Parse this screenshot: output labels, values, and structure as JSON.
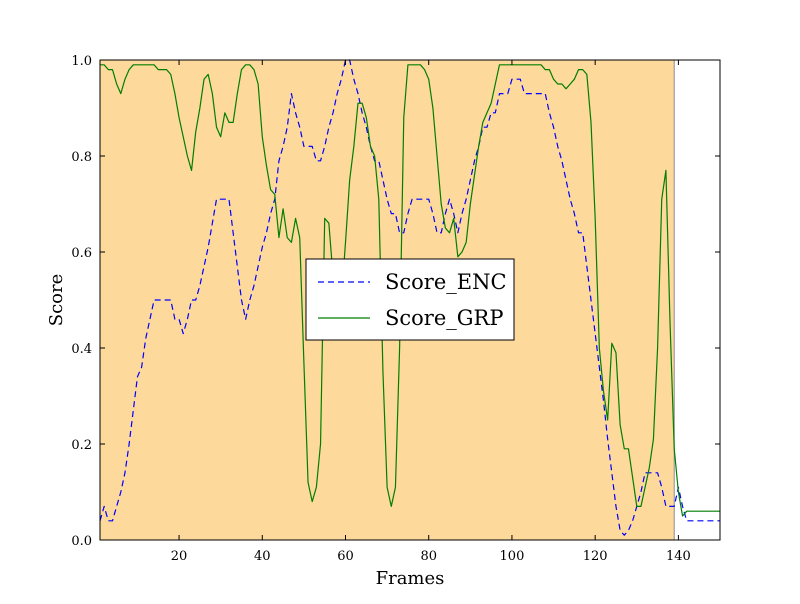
{
  "chart_data": {
    "type": "line",
    "xlabel": "Frames",
    "ylabel": "Score",
    "xlim": [
      1,
      150
    ],
    "ylim": [
      0.0,
      1.0
    ],
    "x_ticks": [
      20,
      40,
      60,
      80,
      100,
      120,
      140
    ],
    "x_tick_labels": [
      "20",
      "40",
      "60",
      "80",
      "100",
      "120",
      "140"
    ],
    "y_ticks": [
      0.0,
      0.2,
      0.4,
      0.6,
      0.8,
      1.0
    ],
    "y_tick_labels": [
      "0.0",
      "0.2",
      "0.4",
      "0.6",
      "0.8",
      "1.0"
    ],
    "grid": false,
    "legend_position": "center",
    "highlight_span": {
      "x_start": 1,
      "x_end": 139,
      "color": "#fdd99b"
    },
    "series": [
      {
        "name": "Score_ENC",
        "color": "#0000ff",
        "style": "dashed",
        "x": [
          1,
          2,
          3,
          4,
          5,
          6,
          7,
          8,
          9,
          10,
          11,
          12,
          13,
          14,
          15,
          16,
          17,
          18,
          19,
          20,
          21,
          22,
          23,
          24,
          25,
          26,
          27,
          28,
          29,
          30,
          31,
          32,
          33,
          34,
          35,
          36,
          37,
          38,
          39,
          40,
          41,
          42,
          43,
          44,
          45,
          46,
          47,
          48,
          49,
          50,
          51,
          52,
          53,
          54,
          55,
          56,
          57,
          58,
          59,
          60,
          61,
          62,
          63,
          64,
          65,
          66,
          67,
          68,
          69,
          70,
          71,
          72,
          73,
          74,
          75,
          76,
          77,
          78,
          79,
          80,
          81,
          82,
          83,
          84,
          85,
          86,
          87,
          88,
          89,
          90,
          91,
          92,
          93,
          94,
          95,
          96,
          97,
          98,
          99,
          100,
          101,
          102,
          103,
          104,
          105,
          106,
          107,
          108,
          109,
          110,
          111,
          112,
          113,
          114,
          115,
          116,
          117,
          118,
          119,
          120,
          121,
          122,
          123,
          124,
          125,
          126,
          127,
          128,
          129,
          130,
          131,
          132,
          133,
          134,
          135,
          136,
          137,
          138,
          139,
          140,
          141,
          142,
          143,
          144,
          145,
          146,
          147,
          148,
          149,
          150
        ],
        "y": [
          0.04,
          0.07,
          0.04,
          0.04,
          0.07,
          0.1,
          0.14,
          0.2,
          0.27,
          0.34,
          0.36,
          0.42,
          0.46,
          0.5,
          0.5,
          0.5,
          0.5,
          0.5,
          0.46,
          0.46,
          0.43,
          0.46,
          0.5,
          0.5,
          0.53,
          0.57,
          0.61,
          0.66,
          0.71,
          0.71,
          0.71,
          0.71,
          0.64,
          0.57,
          0.5,
          0.46,
          0.5,
          0.53,
          0.57,
          0.61,
          0.64,
          0.68,
          0.71,
          0.79,
          0.82,
          0.86,
          0.93,
          0.89,
          0.86,
          0.82,
          0.82,
          0.82,
          0.79,
          0.79,
          0.82,
          0.86,
          0.89,
          0.93,
          0.96,
          1.0,
          1.0,
          0.96,
          0.93,
          0.89,
          0.86,
          0.82,
          0.79,
          0.79,
          0.75,
          0.71,
          0.68,
          0.68,
          0.64,
          0.64,
          0.68,
          0.71,
          0.71,
          0.71,
          0.71,
          0.71,
          0.68,
          0.64,
          0.64,
          0.68,
          0.71,
          0.68,
          0.64,
          0.68,
          0.71,
          0.75,
          0.79,
          0.82,
          0.86,
          0.86,
          0.89,
          0.89,
          0.93,
          0.93,
          0.93,
          0.96,
          0.96,
          0.96,
          0.93,
          0.93,
          0.93,
          0.93,
          0.93,
          0.93,
          0.89,
          0.86,
          0.82,
          0.79,
          0.75,
          0.71,
          0.68,
          0.64,
          0.64,
          0.57,
          0.5,
          0.43,
          0.36,
          0.29,
          0.21,
          0.14,
          0.07,
          0.02,
          0.01,
          0.02,
          0.04,
          0.07,
          0.1,
          0.14,
          0.14,
          0.14,
          0.14,
          0.11,
          0.07,
          0.07,
          0.07,
          0.11,
          0.07,
          0.04,
          0.04,
          0.04,
          0.04,
          0.04,
          0.04,
          0.04,
          0.04,
          0.04
        ]
      },
      {
        "name": "Score_GRP",
        "color": "#007f00",
        "style": "solid",
        "x": [
          1,
          2,
          3,
          4,
          5,
          6,
          7,
          8,
          9,
          10,
          11,
          12,
          13,
          14,
          15,
          16,
          17,
          18,
          19,
          20,
          21,
          22,
          23,
          24,
          25,
          26,
          27,
          28,
          29,
          30,
          31,
          32,
          33,
          34,
          35,
          36,
          37,
          38,
          39,
          40,
          41,
          42,
          43,
          44,
          45,
          46,
          47,
          48,
          49,
          50,
          51,
          52,
          53,
          54,
          55,
          56,
          57,
          58,
          59,
          60,
          61,
          62,
          63,
          64,
          65,
          66,
          67,
          68,
          69,
          70,
          71,
          72,
          73,
          74,
          75,
          76,
          77,
          78,
          79,
          80,
          81,
          82,
          83,
          84,
          85,
          86,
          87,
          88,
          89,
          90,
          91,
          92,
          93,
          94,
          95,
          96,
          97,
          98,
          99,
          100,
          101,
          102,
          103,
          104,
          105,
          106,
          107,
          108,
          109,
          110,
          111,
          112,
          113,
          114,
          115,
          116,
          117,
          118,
          119,
          120,
          121,
          122,
          123,
          124,
          125,
          126,
          127,
          128,
          129,
          130,
          131,
          132,
          133,
          134,
          135,
          136,
          137,
          138,
          139,
          140,
          141,
          142,
          143,
          144,
          145,
          146,
          147,
          148,
          149,
          150
        ],
        "y": [
          0.99,
          0.99,
          0.98,
          0.98,
          0.95,
          0.93,
          0.96,
          0.98,
          0.99,
          0.99,
          0.99,
          0.99,
          0.99,
          0.99,
          0.98,
          0.98,
          0.98,
          0.97,
          0.93,
          0.88,
          0.84,
          0.8,
          0.77,
          0.85,
          0.9,
          0.96,
          0.97,
          0.93,
          0.86,
          0.84,
          0.89,
          0.87,
          0.87,
          0.93,
          0.98,
          0.99,
          0.99,
          0.98,
          0.95,
          0.84,
          0.78,
          0.73,
          0.72,
          0.63,
          0.69,
          0.63,
          0.62,
          0.67,
          0.63,
          0.37,
          0.12,
          0.08,
          0.11,
          0.2,
          0.67,
          0.66,
          0.55,
          0.5,
          0.5,
          0.62,
          0.75,
          0.82,
          0.91,
          0.91,
          0.88,
          0.82,
          0.8,
          0.71,
          0.35,
          0.11,
          0.07,
          0.11,
          0.4,
          0.88,
          0.99,
          0.99,
          0.99,
          0.99,
          0.98,
          0.96,
          0.9,
          0.8,
          0.7,
          0.65,
          0.64,
          0.67,
          0.59,
          0.6,
          0.62,
          0.7,
          0.76,
          0.82,
          0.87,
          0.89,
          0.91,
          0.95,
          0.99,
          0.99,
          0.99,
          0.99,
          0.99,
          0.99,
          0.99,
          0.99,
          0.99,
          0.99,
          0.99,
          0.98,
          0.98,
          0.96,
          0.95,
          0.95,
          0.94,
          0.95,
          0.96,
          0.98,
          0.98,
          0.97,
          0.87,
          0.67,
          0.4,
          0.31,
          0.25,
          0.41,
          0.39,
          0.24,
          0.19,
          0.19,
          0.13,
          0.07,
          0.07,
          0.11,
          0.15,
          0.21,
          0.4,
          0.71,
          0.77,
          0.45,
          0.19,
          0.1,
          0.05,
          0.06,
          0.06,
          0.06,
          0.06,
          0.06,
          0.06,
          0.06,
          0.06,
          0.06
        ]
      }
    ]
  }
}
